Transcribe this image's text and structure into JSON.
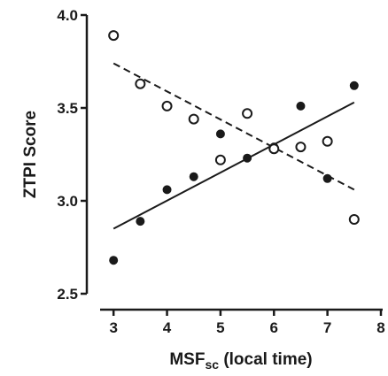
{
  "chart_data": {
    "type": "scatter",
    "title": "",
    "xlabel": "MSF",
    "xlabel_subscript": "sc",
    "xlabel_suffix": " (local time)",
    "ylabel": "ZTPI Score",
    "xlim": [
      2.5,
      8
    ],
    "ylim": [
      2.5,
      4.0
    ],
    "x_ticks": [
      "3",
      "4",
      "5",
      "6",
      "7",
      "8"
    ],
    "y_ticks": [
      "2.5",
      "3.0",
      "3.5",
      "4.0"
    ],
    "grid": false,
    "legend": "none",
    "colors": {
      "axis": "#1a1a1a",
      "filled_marker": "#1a1a1a",
      "open_marker_stroke": "#1a1a1a",
      "open_marker_fill": "#ffffff"
    },
    "series": [
      {
        "marker": "filled-circle",
        "line_style": "solid",
        "points": [
          {
            "x": 3.0,
            "y": 2.68
          },
          {
            "x": 3.5,
            "y": 2.89
          },
          {
            "x": 4.0,
            "y": 3.06
          },
          {
            "x": 4.5,
            "y": 3.13
          },
          {
            "x": 5.0,
            "y": 3.36
          },
          {
            "x": 5.5,
            "y": 3.23
          },
          {
            "x": 6.0,
            "y": 3.29
          },
          {
            "x": 6.5,
            "y": 3.51
          },
          {
            "x": 7.0,
            "y": 3.12
          },
          {
            "x": 7.5,
            "y": 3.62
          }
        ],
        "fit_line": {
          "x_start": 3.0,
          "y_start": 2.85,
          "x_end": 7.5,
          "y_end": 3.53
        }
      },
      {
        "marker": "open-circle",
        "line_style": "dashed",
        "points": [
          {
            "x": 3.0,
            "y": 3.89
          },
          {
            "x": 3.5,
            "y": 3.63
          },
          {
            "x": 4.0,
            "y": 3.51
          },
          {
            "x": 4.5,
            "y": 3.44
          },
          {
            "x": 5.0,
            "y": 3.22
          },
          {
            "x": 5.5,
            "y": 3.47
          },
          {
            "x": 6.0,
            "y": 3.28
          },
          {
            "x": 6.5,
            "y": 3.29
          },
          {
            "x": 7.0,
            "y": 3.32
          },
          {
            "x": 7.5,
            "y": 2.9
          }
        ],
        "fit_line": {
          "x_start": 3.0,
          "y_start": 3.74,
          "x_end": 7.5,
          "y_end": 3.06
        }
      }
    ]
  }
}
